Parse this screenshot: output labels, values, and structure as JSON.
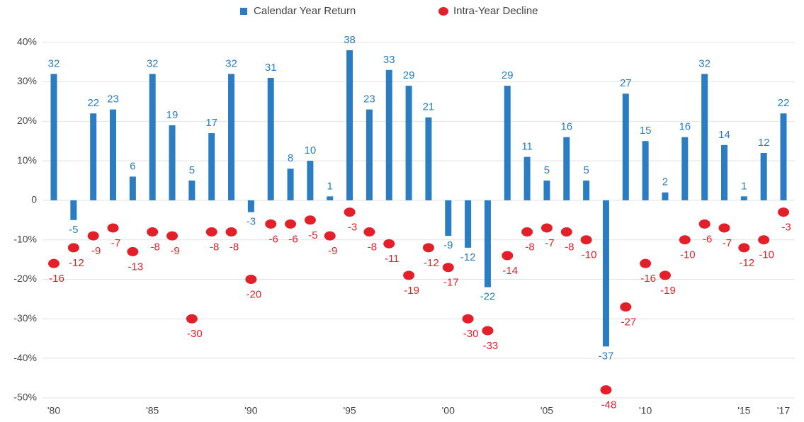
{
  "chart_data": {
    "type": "bar",
    "categories": [
      "'80",
      null,
      null,
      null,
      null,
      "'85",
      null,
      null,
      null,
      null,
      "'90",
      null,
      null,
      null,
      null,
      "'95",
      null,
      null,
      null,
      null,
      "'00",
      null,
      null,
      null,
      null,
      "'05",
      null,
      null,
      null,
      null,
      "'10",
      null,
      null,
      null,
      null,
      "'15",
      null,
      "'17"
    ],
    "series": [
      {
        "name": "Calendar Year Return",
        "type": "bar",
        "color": "#2a7dc2",
        "values": [
          32,
          -5,
          22,
          23,
          6,
          32,
          19,
          5,
          17,
          32,
          -3,
          31,
          8,
          10,
          1,
          38,
          23,
          33,
          29,
          21,
          -9,
          -12,
          -22,
          29,
          11,
          5,
          16,
          5,
          -37,
          27,
          15,
          2,
          16,
          32,
          14,
          1,
          12,
          22
        ]
      },
      {
        "name": "Intra-Year Decline",
        "type": "scatter",
        "color": "#e3202a",
        "values": [
          -16,
          -12,
          -9,
          -7,
          -13,
          -8,
          -9,
          -30,
          -8,
          -8,
          -20,
          -6,
          -6,
          -5,
          -9,
          -3,
          -8,
          -11,
          -19,
          -12,
          -17,
          -30,
          -33,
          -14,
          -8,
          -7,
          -8,
          -10,
          -48,
          -27,
          -16,
          -19,
          -10,
          -6,
          -7,
          -12,
          -10,
          -3
        ]
      }
    ],
    "ylim": [
      -52,
      42
    ],
    "yticks": [
      {
        "value": -50,
        "label": "-50%"
      },
      {
        "value": -40,
        "label": "-40%"
      },
      {
        "value": -30,
        "label": "-30%"
      },
      {
        "value": -20,
        "label": "-20%"
      },
      {
        "value": -10,
        "label": "-10%"
      },
      0,
      {
        "value": 10,
        "label": "10%"
      },
      {
        "value": 20,
        "label": "20%"
      },
      {
        "value": 30,
        "label": "30%"
      },
      {
        "value": 40,
        "label": "40%"
      }
    ],
    "grid": true,
    "legend": "top"
  }
}
